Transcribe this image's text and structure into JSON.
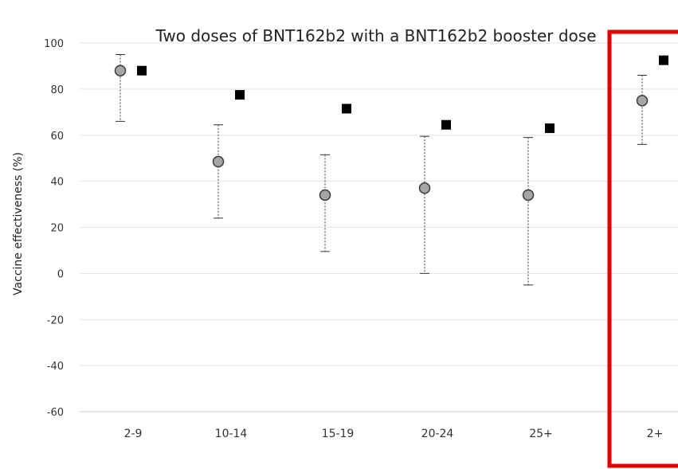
{
  "chart_data": {
    "type": "scatter",
    "title": "Two doses of BNT162b2 with a BNT162b2 booster dose",
    "xlabel": "",
    "ylabel": "Vaccine effectiveness (%)",
    "ylim": [
      -60,
      100
    ],
    "yticks": [
      100,
      80,
      60,
      40,
      20,
      0,
      -20,
      -40,
      -60
    ],
    "grid": true,
    "categories": [
      "2-9",
      "10-14",
      "15-19",
      "20-24",
      "25+",
      "2+"
    ],
    "series": [
      {
        "marker": "circle",
        "color": "#a6a6a6",
        "values": [
          88,
          48.5,
          34,
          37,
          34,
          75
        ],
        "ci_lower": [
          66,
          24,
          9.5,
          0,
          -5,
          56
        ],
        "ci_upper": [
          95,
          64.5,
          51.5,
          59.5,
          59,
          86
        ]
      },
      {
        "marker": "square",
        "color": "#000000",
        "values": [
          88,
          77.5,
          71.5,
          64.5,
          63,
          92.5
        ]
      }
    ],
    "highlight": {
      "category": "2+",
      "color": "#e00000"
    }
  }
}
